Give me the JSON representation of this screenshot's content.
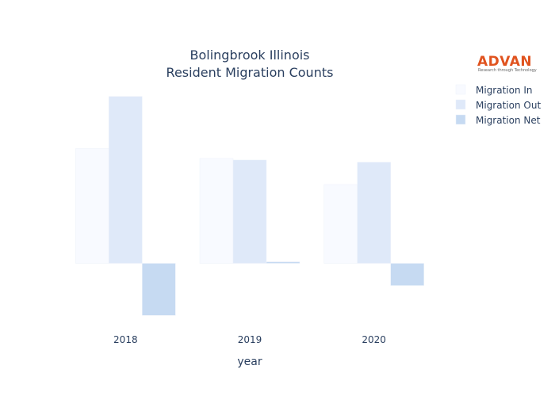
{
  "chart_data": {
    "type": "bar",
    "title_lines": [
      "Bolingbrook Illinois",
      "Resident Migration Counts"
    ],
    "xlabel": "year",
    "ylabel": "",
    "categories": [
      "2018",
      "2019",
      "2020"
    ],
    "series": [
      {
        "name": "Migration In",
        "values": [
          150,
          137,
          103
        ],
        "color": "#f8faff"
      },
      {
        "name": "Migration Out",
        "values": [
          218,
          135,
          132
        ],
        "color": "#dfe9f9"
      },
      {
        "name": "Migration Net",
        "values": [
          -68,
          2,
          -29
        ],
        "color": "#c6daf2"
      }
    ],
    "ylim": [
      -75,
      225
    ],
    "grid": false,
    "y_ticks_visible": false,
    "legend_position": "top-right"
  },
  "logo": {
    "name": "ADVAN",
    "tagline": "Research through Technology",
    "color": "#e0531f"
  }
}
